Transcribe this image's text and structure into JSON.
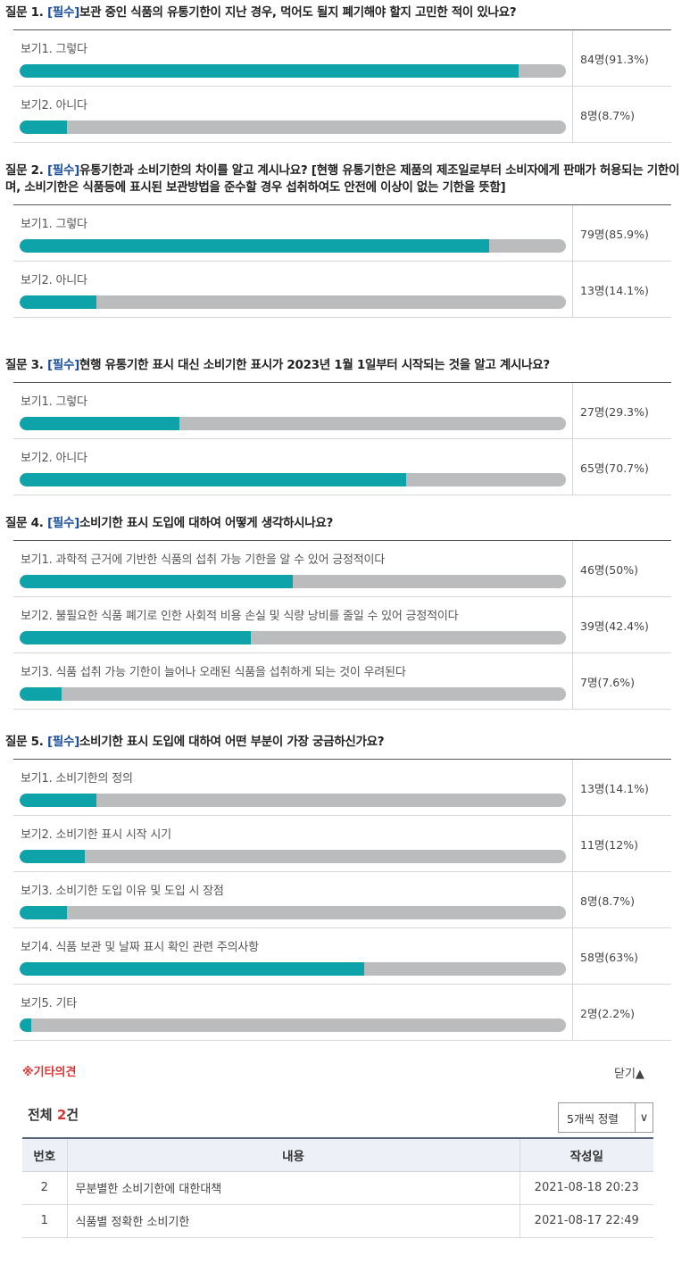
{
  "questions": [
    {
      "number": "질문 1.",
      "required": "[필수]",
      "text": "보관 중인 식품의 유통기한이 지난 경우, 먹어도 될지 폐기해야 할지 고민한 적이 있나요?",
      "options": [
        {
          "label": "보기1. 그렇다",
          "count": "84명(91.3%)",
          "percent": 91.3
        },
        {
          "label": "보기2. 아니다",
          "count": "8명(8.7%)",
          "percent": 8.7
        }
      ]
    },
    {
      "number": "질문 2.",
      "required": "[필수]",
      "text": "유통기한과 소비기한의 차이를 알고 계시나요? [현행 유통기한은 제품의 제조일로부터 소비자에게 판매가 허용되는 기한이며, 소비기한은 식품등에 표시된 보관방법을 준수할 경우 섭취하여도 안전에 이상이 없는 기한을 뜻함]",
      "options": [
        {
          "label": "보기1. 그렇다",
          "count": "79명(85.9%)",
          "percent": 85.9
        },
        {
          "label": "보기2. 아니다",
          "count": "13명(14.1%)",
          "percent": 14.1
        }
      ]
    },
    {
      "number": "질문 3.",
      "required": "[필수]",
      "text": "현행 유통기한 표시 대신 소비기한 표시가 2023년 1월 1일부터 시작되는 것을 알고 계시나요?",
      "options": [
        {
          "label": "보기1. 그렇다",
          "count": "27명(29.3%)",
          "percent": 29.3
        },
        {
          "label": "보기2. 아니다",
          "count": "65명(70.7%)",
          "percent": 70.7
        }
      ]
    },
    {
      "number": "질문 4.",
      "required": "[필수]",
      "text": "소비기한 표시 도입에 대하여 어떻게 생각하시나요?",
      "options": [
        {
          "label": "보기1. 과학적 근거에 기반한 식품의 섭취 가능 기한을 알 수 있어 긍정적이다",
          "count": "46명(50%)",
          "percent": 50
        },
        {
          "label": "보기2. 불필요한 식품 폐기로 인한 사회적 비용 손실 및 식량 낭비를 줄일 수 있어 긍정적이다",
          "count": "39명(42.4%)",
          "percent": 42.4
        },
        {
          "label": "보기3. 식품 섭취 가능 기한이 늘어나 오래된 식품을 섭취하게 되는 것이 우려된다",
          "count": "7명(7.6%)",
          "percent": 7.6
        }
      ]
    },
    {
      "number": "질문 5.",
      "required": "[필수]",
      "text": "소비기한 표시 도입에 대하여 어떤 부분이 가장 궁금하신가요?",
      "options": [
        {
          "label": "보기1. 소비기한의 정의",
          "count": "13명(14.1%)",
          "percent": 14.1
        },
        {
          "label": "보기2. 소비기한 표시 시작 시기",
          "count": "11명(12%)",
          "percent": 12
        },
        {
          "label": "보기3. 소비기한 도입 이유 및 도입 시 장점",
          "count": "8명(8.7%)",
          "percent": 8.7
        },
        {
          "label": "보기4. 식품 보관 및 날짜 표시 확인 관련 주의사항",
          "count": "58명(63%)",
          "percent": 63
        },
        {
          "label": "보기5. 기타",
          "count": "2명(2.2%)",
          "percent": 2.2
        }
      ]
    }
  ],
  "other_opinions": {
    "title": "※기타의견",
    "close_label": "닫기▲",
    "total_prefix": "전체 ",
    "total_count": "2",
    "total_suffix": "건",
    "sort_value": "5개씩 정렬",
    "sort_arrow": "∨",
    "columns": {
      "no": "번호",
      "content": "내용",
      "date": "작성일"
    },
    "rows": [
      {
        "no": "2",
        "content": "무분별한 소비기한에 대한대책",
        "date": "2021-08-18 20:23"
      },
      {
        "no": "1",
        "content": "식품별 정확한 소비기한",
        "date": "2021-08-17 22:49"
      }
    ]
  }
}
